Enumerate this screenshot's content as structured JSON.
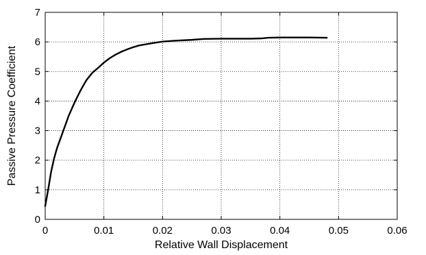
{
  "chart_data": {
    "type": "line",
    "title": "",
    "xlabel": "Relative Wall Displacement",
    "ylabel": "Passive Pressure Coefficient",
    "xlim": [
      0,
      0.06
    ],
    "ylim": [
      0,
      7
    ],
    "x_ticks": [
      0,
      0.01,
      0.02,
      0.03,
      0.04,
      0.05,
      0.06
    ],
    "x_tick_labels": [
      "0",
      "0.01",
      "0.02",
      "0.03",
      "0.04",
      "0.05",
      "0.06"
    ],
    "y_ticks": [
      0,
      1,
      2,
      3,
      4,
      5,
      6,
      7
    ],
    "y_tick_labels": [
      "0",
      "1",
      "2",
      "3",
      "4",
      "5",
      "6",
      "7"
    ],
    "grid": true,
    "grid_style": "dotted",
    "series": [
      {
        "color": "#000000",
        "x": [
          0,
          0.0005,
          0.001,
          0.0015,
          0.002,
          0.003,
          0.004,
          0.005,
          0.006,
          0.007,
          0.008,
          0.009,
          0.01,
          0.011,
          0.012,
          0.013,
          0.014,
          0.015,
          0.016,
          0.018,
          0.02,
          0.022,
          0.025,
          0.027,
          0.03,
          0.035,
          0.037,
          0.038,
          0.04,
          0.045,
          0.048
        ],
        "y": [
          0.45,
          1.0,
          1.6,
          2.05,
          2.4,
          2.95,
          3.5,
          3.95,
          4.35,
          4.7,
          4.95,
          5.12,
          5.3,
          5.45,
          5.57,
          5.67,
          5.75,
          5.82,
          5.88,
          5.95,
          6.01,
          6.04,
          6.07,
          6.1,
          6.11,
          6.11,
          6.12,
          6.14,
          6.15,
          6.15,
          6.14
        ]
      }
    ]
  }
}
